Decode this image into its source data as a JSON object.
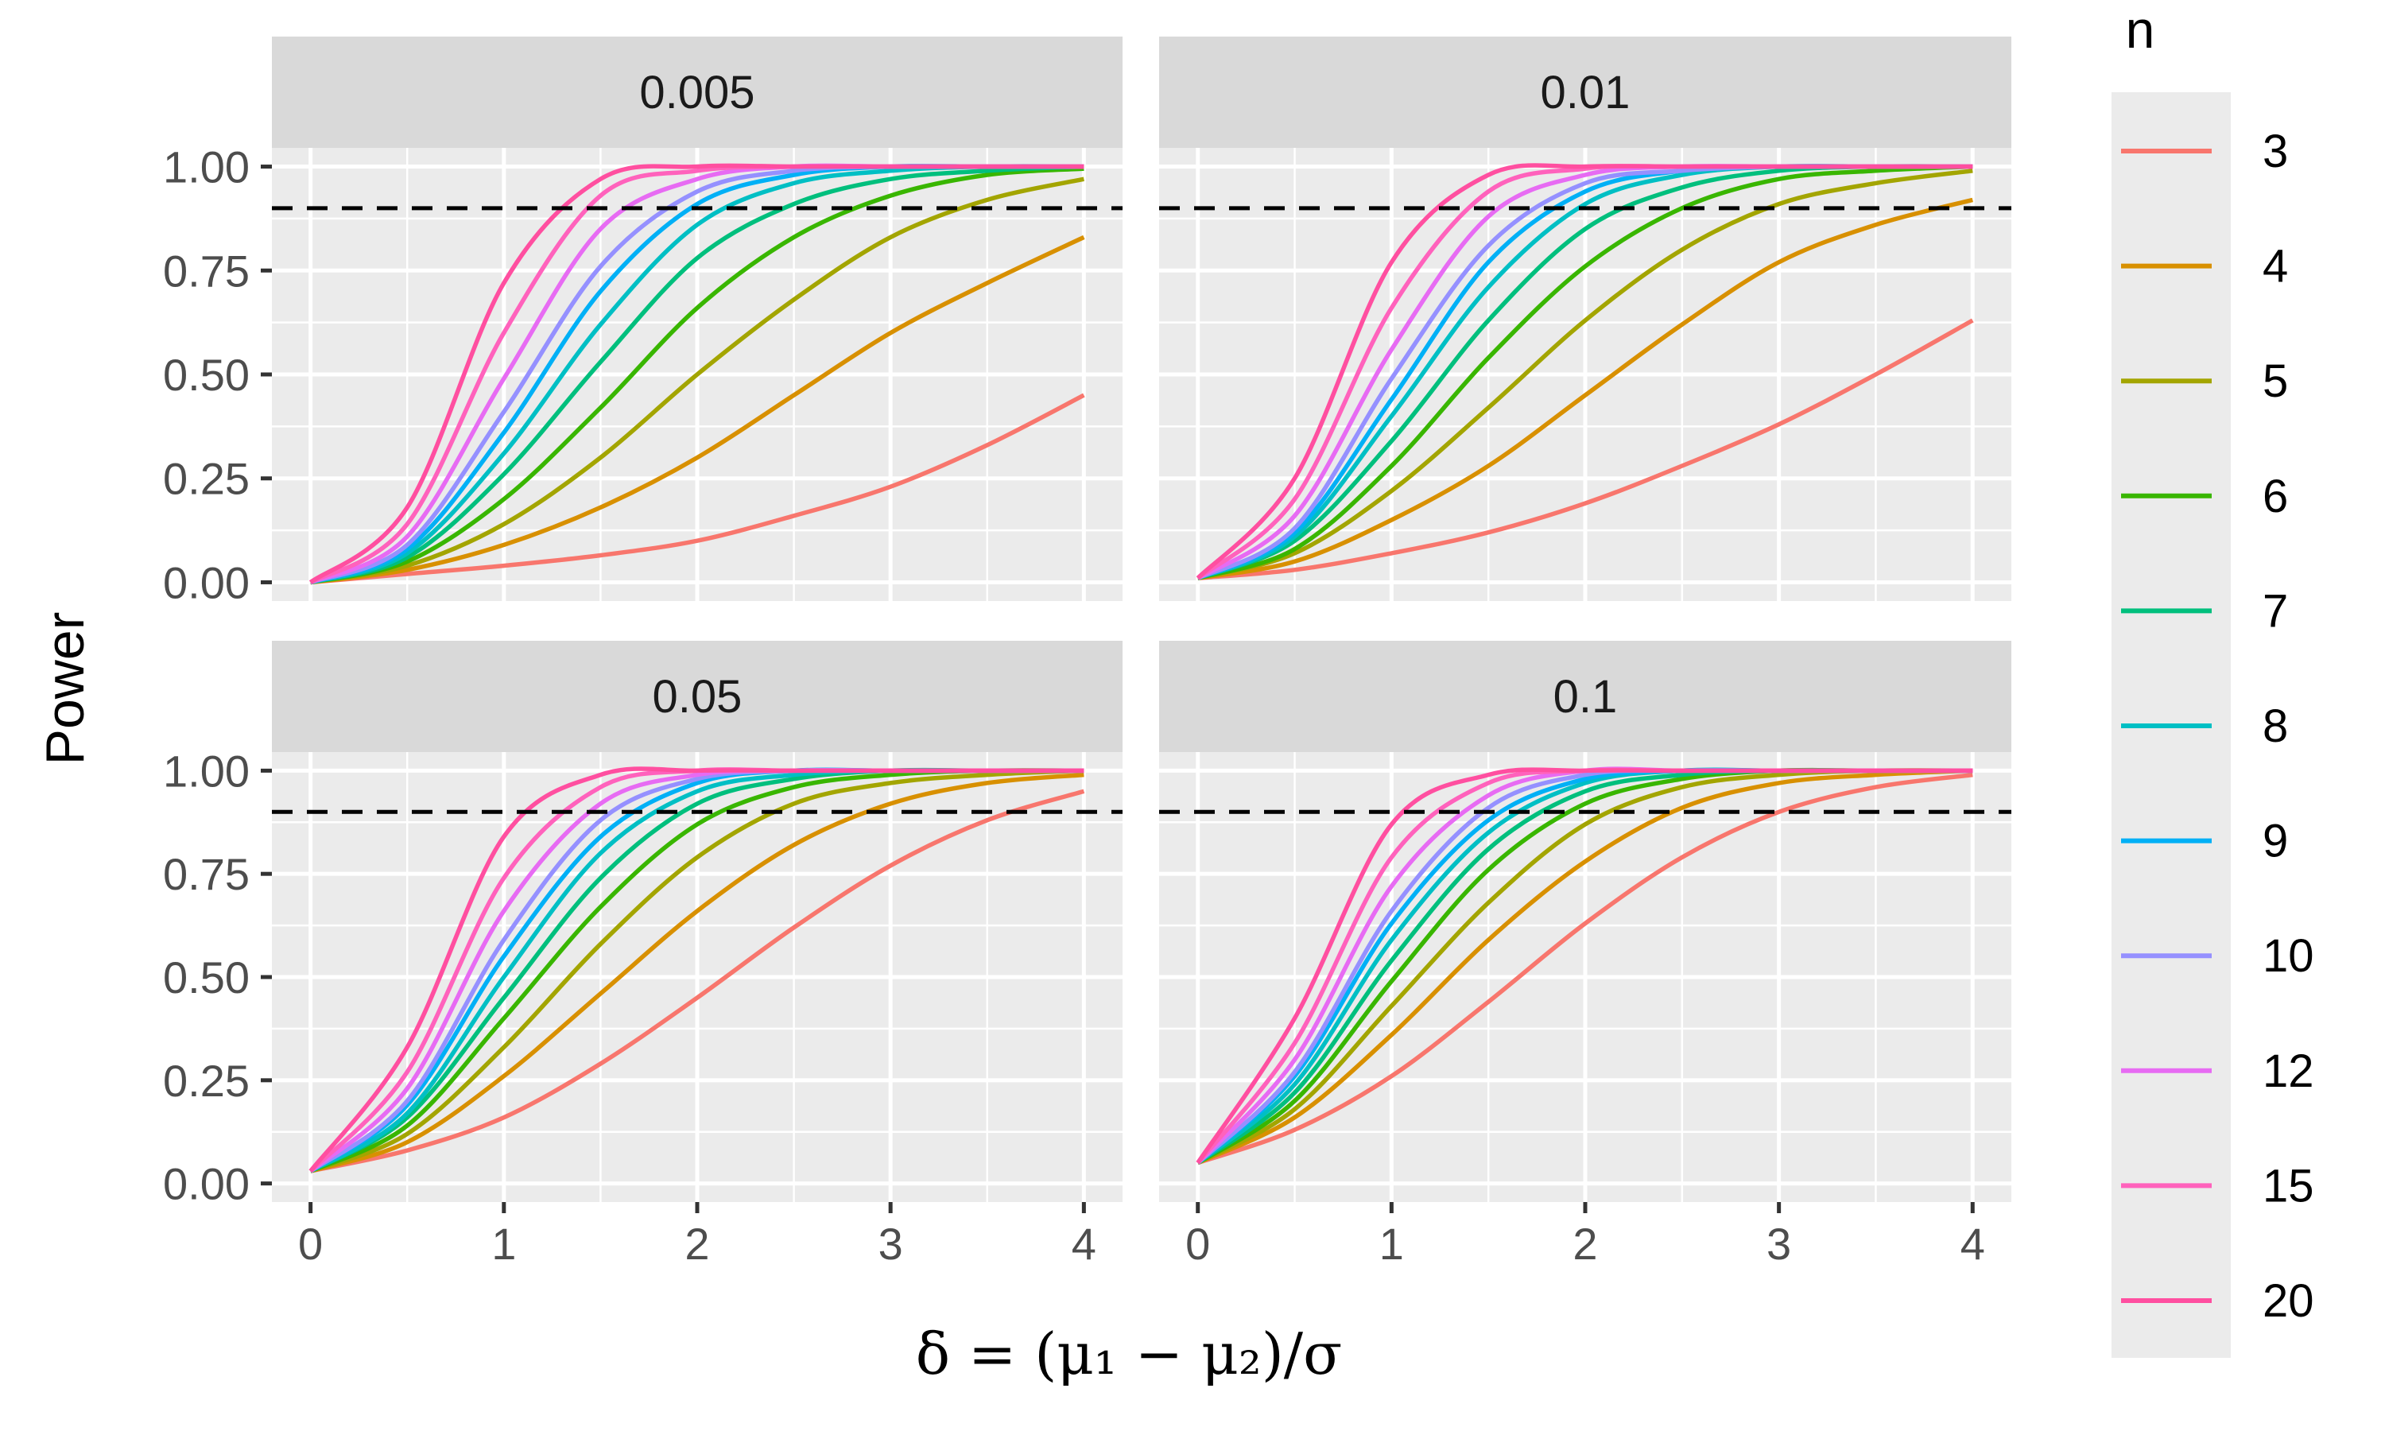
{
  "chart_data": {
    "type": "line",
    "facets": [
      "0.005",
      "0.01",
      "0.05",
      "0.1"
    ],
    "ylabel": "Power",
    "xlabel": "δ = (μ₁ − μ₂)/σ",
    "xlim": [
      0,
      4
    ],
    "ylim": [
      0,
      1
    ],
    "x_ticks": [
      "0",
      "1",
      "2",
      "3",
      "4"
    ],
    "y_ticks": [
      "0.00",
      "0.25",
      "0.50",
      "0.75",
      "1.00"
    ],
    "reference_line": {
      "y": 0.9,
      "style": "dashed",
      "color": "#000000"
    },
    "legend": {
      "title": "n",
      "position": "right"
    },
    "series": [
      {
        "name": "3",
        "color": "#F8766D"
      },
      {
        "name": "4",
        "color": "#D89000"
      },
      {
        "name": "5",
        "color": "#A3A500"
      },
      {
        "name": "6",
        "color": "#39B600"
      },
      {
        "name": "7",
        "color": "#00BF7D"
      },
      {
        "name": "8",
        "color": "#00BFC4"
      },
      {
        "name": "9",
        "color": "#00B0F6"
      },
      {
        "name": "10",
        "color": "#9590FF"
      },
      {
        "name": "12",
        "color": "#E76BF3"
      },
      {
        "name": "15",
        "color": "#FF62BC"
      },
      {
        "name": "20",
        "color": "#FF4FA0"
      }
    ],
    "x": [
      0,
      0.5,
      1,
      1.5,
      2,
      2.5,
      3,
      3.5,
      4
    ],
    "values": {
      "0.005": {
        "3": [
          0.0,
          0.02,
          0.04,
          0.065,
          0.1,
          0.16,
          0.23,
          0.33,
          0.45
        ],
        "4": [
          0.0,
          0.03,
          0.09,
          0.18,
          0.3,
          0.45,
          0.6,
          0.72,
          0.83
        ],
        "5": [
          0.0,
          0.04,
          0.14,
          0.3,
          0.5,
          0.68,
          0.83,
          0.92,
          0.97
        ],
        "6": [
          0.0,
          0.05,
          0.2,
          0.42,
          0.66,
          0.83,
          0.93,
          0.98,
          0.995
        ],
        "7": [
          0.0,
          0.06,
          0.26,
          0.53,
          0.78,
          0.91,
          0.97,
          0.99,
          1.0
        ],
        "8": [
          0.0,
          0.07,
          0.31,
          0.62,
          0.86,
          0.96,
          0.99,
          1.0,
          1.0
        ],
        "9": [
          0.0,
          0.08,
          0.36,
          0.7,
          0.91,
          0.98,
          1.0,
          1.0,
          1.0
        ],
        "10": [
          0.0,
          0.09,
          0.41,
          0.76,
          0.94,
          0.99,
          1.0,
          1.0,
          1.0
        ],
        "12": [
          0.0,
          0.11,
          0.49,
          0.85,
          0.97,
          1.0,
          1.0,
          1.0,
          1.0
        ],
        "15": [
          0.0,
          0.14,
          0.6,
          0.93,
          0.99,
          1.0,
          1.0,
          1.0,
          1.0
        ],
        "20": [
          0.0,
          0.18,
          0.72,
          0.97,
          1.0,
          1.0,
          1.0,
          1.0,
          1.0
        ]
      },
      "0.01": {
        "3": [
          0.01,
          0.03,
          0.07,
          0.12,
          0.19,
          0.28,
          0.38,
          0.5,
          0.63
        ],
        "4": [
          0.01,
          0.05,
          0.15,
          0.28,
          0.45,
          0.62,
          0.77,
          0.86,
          0.92
        ],
        "5": [
          0.01,
          0.07,
          0.22,
          0.42,
          0.63,
          0.8,
          0.91,
          0.96,
          0.99
        ],
        "6": [
          0.01,
          0.08,
          0.28,
          0.54,
          0.76,
          0.9,
          0.97,
          0.99,
          1.0
        ],
        "7": [
          0.01,
          0.1,
          0.34,
          0.63,
          0.85,
          0.95,
          0.99,
          1.0,
          1.0
        ],
        "8": [
          0.01,
          0.11,
          0.4,
          0.71,
          0.91,
          0.98,
          1.0,
          1.0,
          1.0
        ],
        "9": [
          0.01,
          0.12,
          0.44,
          0.77,
          0.94,
          0.99,
          1.0,
          1.0,
          1.0
        ],
        "10": [
          0.01,
          0.13,
          0.49,
          0.81,
          0.96,
          0.99,
          1.0,
          1.0,
          1.0
        ],
        "12": [
          0.01,
          0.16,
          0.56,
          0.88,
          0.98,
          1.0,
          1.0,
          1.0,
          1.0
        ],
        "15": [
          0.01,
          0.2,
          0.66,
          0.94,
          0.995,
          1.0,
          1.0,
          1.0,
          1.0
        ],
        "20": [
          0.01,
          0.25,
          0.77,
          0.98,
          1.0,
          1.0,
          1.0,
          1.0,
          1.0
        ]
      },
      "0.05": {
        "3": [
          0.03,
          0.08,
          0.16,
          0.29,
          0.45,
          0.62,
          0.77,
          0.88,
          0.95
        ],
        "4": [
          0.03,
          0.1,
          0.26,
          0.46,
          0.66,
          0.82,
          0.92,
          0.97,
          0.99
        ],
        "5": [
          0.03,
          0.12,
          0.33,
          0.58,
          0.79,
          0.92,
          0.97,
          0.99,
          1.0
        ],
        "6": [
          0.03,
          0.14,
          0.4,
          0.67,
          0.87,
          0.96,
          0.99,
          1.0,
          1.0
        ],
        "7": [
          0.03,
          0.16,
          0.45,
          0.74,
          0.92,
          0.98,
          1.0,
          1.0,
          1.0
        ],
        "8": [
          0.03,
          0.17,
          0.5,
          0.8,
          0.95,
          0.99,
          1.0,
          1.0,
          1.0
        ],
        "9": [
          0.03,
          0.19,
          0.55,
          0.84,
          0.97,
          1.0,
          1.0,
          1.0,
          1.0
        ],
        "10": [
          0.03,
          0.2,
          0.59,
          0.88,
          0.98,
          1.0,
          1.0,
          1.0,
          1.0
        ],
        "12": [
          0.03,
          0.23,
          0.66,
          0.92,
          0.99,
          1.0,
          1.0,
          1.0,
          1.0
        ],
        "15": [
          0.03,
          0.27,
          0.74,
          0.96,
          1.0,
          1.0,
          1.0,
          1.0,
          1.0
        ],
        "20": [
          0.03,
          0.33,
          0.84,
          0.99,
          1.0,
          1.0,
          1.0,
          1.0,
          1.0
        ]
      },
      "0.1": {
        "3": [
          0.05,
          0.13,
          0.26,
          0.44,
          0.63,
          0.79,
          0.9,
          0.96,
          0.99
        ],
        "4": [
          0.05,
          0.16,
          0.36,
          0.59,
          0.78,
          0.91,
          0.97,
          0.99,
          1.0
        ],
        "5": [
          0.05,
          0.18,
          0.43,
          0.68,
          0.87,
          0.96,
          0.99,
          1.0,
          1.0
        ],
        "6": [
          0.05,
          0.2,
          0.49,
          0.76,
          0.92,
          0.98,
          1.0,
          1.0,
          1.0
        ],
        "7": [
          0.05,
          0.22,
          0.54,
          0.81,
          0.95,
          0.99,
          1.0,
          1.0,
          1.0
        ],
        "8": [
          0.05,
          0.24,
          0.59,
          0.85,
          0.97,
          1.0,
          1.0,
          1.0,
          1.0
        ],
        "9": [
          0.05,
          0.26,
          0.63,
          0.88,
          0.98,
          1.0,
          1.0,
          1.0,
          1.0
        ],
        "10": [
          0.05,
          0.27,
          0.66,
          0.91,
          0.99,
          1.0,
          1.0,
          1.0,
          1.0
        ],
        "12": [
          0.05,
          0.3,
          0.72,
          0.94,
          1.0,
          1.0,
          1.0,
          1.0,
          1.0
        ],
        "15": [
          0.05,
          0.34,
          0.79,
          0.97,
          1.0,
          1.0,
          1.0,
          1.0,
          1.0
        ],
        "20": [
          0.05,
          0.4,
          0.87,
          0.99,
          1.0,
          1.0,
          1.0,
          1.0,
          1.0
        ]
      }
    }
  }
}
